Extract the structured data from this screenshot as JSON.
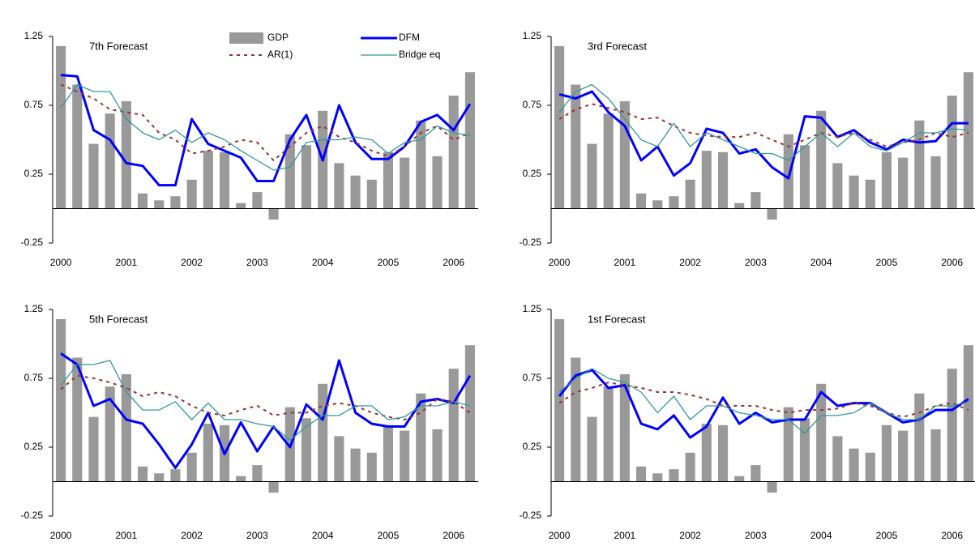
{
  "chart_data": [
    {
      "type": "bar",
      "title": "7th Forecast",
      "legend": "upper center",
      "categories": [
        "2000",
        null,
        null,
        null,
        "2001",
        null,
        null,
        null,
        "2002",
        null,
        null,
        null,
        "2003",
        null,
        null,
        null,
        "2004",
        null,
        null,
        null,
        "2005",
        null,
        null,
        null,
        "2006",
        null
      ],
      "ylim": [
        -0.25,
        1.25
      ],
      "yticks": [
        -0.25,
        0.25,
        0.75,
        1.25
      ],
      "series": [
        {
          "name": "GDP",
          "type": "bar",
          "color": "#999999",
          "values": [
            1.18,
            0.9,
            0.47,
            0.69,
            0.78,
            0.11,
            0.06,
            0.09,
            0.21,
            0.42,
            0.41,
            0.04,
            0.12,
            -0.08,
            0.54,
            0.46,
            0.71,
            0.33,
            0.24,
            0.21,
            0.41,
            0.37,
            0.64,
            0.38,
            0.82,
            0.99
          ]
        },
        {
          "name": "DFM",
          "type": "line",
          "color": "#0000ff",
          "width": 3,
          "values": [
            0.97,
            0.96,
            0.57,
            0.5,
            0.33,
            0.31,
            0.17,
            0.17,
            0.65,
            0.47,
            0.42,
            0.37,
            0.2,
            0.2,
            0.5,
            0.68,
            0.35,
            0.75,
            0.48,
            0.36,
            0.36,
            0.45,
            0.63,
            0.68,
            0.57,
            0.76
          ]
        },
        {
          "name": "AR(1)",
          "type": "line",
          "color": "#993333",
          "width": 2,
          "style": "dashed",
          "values": [
            0.9,
            0.85,
            0.8,
            0.72,
            0.7,
            0.68,
            0.55,
            0.5,
            0.4,
            0.42,
            0.45,
            0.5,
            0.48,
            0.35,
            0.45,
            0.55,
            0.6,
            0.52,
            0.48,
            0.42,
            0.38,
            0.45,
            0.55,
            0.6,
            0.5,
            0.55
          ]
        },
        {
          "name": "Bridge eq",
          "type": "line",
          "color": "#339999",
          "width": 1.3,
          "values": [
            0.73,
            0.9,
            0.85,
            0.85,
            0.65,
            0.55,
            0.5,
            0.57,
            0.48,
            0.55,
            0.5,
            0.42,
            0.35,
            0.28,
            0.3,
            0.48,
            0.5,
            0.5,
            0.52,
            0.5,
            0.4,
            0.48,
            0.5,
            0.6,
            0.55,
            0.53
          ]
        }
      ]
    },
    {
      "type": "bar",
      "title": "3rd Forecast",
      "categories": [
        "2000",
        null,
        null,
        null,
        "2001",
        null,
        null,
        null,
        "2002",
        null,
        null,
        null,
        "2003",
        null,
        null,
        null,
        "2004",
        null,
        null,
        null,
        "2005",
        null,
        null,
        null,
        "2006",
        null
      ],
      "ylim": [
        -0.25,
        1.25
      ],
      "yticks": [
        -0.25,
        0.25,
        0.75,
        1.25
      ],
      "series": [
        {
          "name": "GDP",
          "type": "bar",
          "color": "#999999",
          "values": [
            1.18,
            0.9,
            0.47,
            0.69,
            0.78,
            0.11,
            0.06,
            0.09,
            0.21,
            0.42,
            0.41,
            0.04,
            0.12,
            -0.08,
            0.54,
            0.46,
            0.71,
            0.33,
            0.24,
            0.21,
            0.41,
            0.37,
            0.64,
            0.38,
            0.82,
            0.99
          ]
        },
        {
          "name": "DFM",
          "type": "line",
          "color": "#0000ff",
          "width": 3,
          "values": [
            0.83,
            0.8,
            0.85,
            0.7,
            0.6,
            0.35,
            0.45,
            0.24,
            0.33,
            0.58,
            0.55,
            0.4,
            0.43,
            0.3,
            0.22,
            0.67,
            0.66,
            0.52,
            0.57,
            0.48,
            0.43,
            0.5,
            0.48,
            0.49,
            0.62,
            0.62
          ]
        },
        {
          "name": "AR(1)",
          "type": "line",
          "color": "#993333",
          "width": 2,
          "style": "dashed",
          "values": [
            0.65,
            0.72,
            0.76,
            0.73,
            0.7,
            0.65,
            0.66,
            0.6,
            0.55,
            0.53,
            0.52,
            0.52,
            0.55,
            0.5,
            0.45,
            0.5,
            0.55,
            0.52,
            0.55,
            0.5,
            0.45,
            0.48,
            0.5,
            0.55,
            0.52,
            0.55
          ]
        },
        {
          "name": "Bridge eq",
          "type": "line",
          "color": "#339999",
          "width": 1.3,
          "values": [
            0.7,
            0.85,
            0.9,
            0.8,
            0.65,
            0.5,
            0.45,
            0.62,
            0.45,
            0.55,
            0.5,
            0.45,
            0.4,
            0.4,
            0.35,
            0.45,
            0.55,
            0.45,
            0.55,
            0.45,
            0.42,
            0.48,
            0.55,
            0.55,
            0.58,
            0.57
          ]
        }
      ]
    },
    {
      "type": "bar",
      "title": "5th Forecast",
      "categories": [
        "2000",
        null,
        null,
        null,
        "2001",
        null,
        null,
        null,
        "2002",
        null,
        null,
        null,
        "2003",
        null,
        null,
        null,
        "2004",
        null,
        null,
        null,
        "2005",
        null,
        null,
        null,
        "2006",
        null
      ],
      "ylim": [
        -0.25,
        1.25
      ],
      "yticks": [
        -0.25,
        0.25,
        0.75,
        1.25
      ],
      "series": [
        {
          "name": "GDP",
          "type": "bar",
          "color": "#999999",
          "values": [
            1.18,
            0.9,
            0.47,
            0.69,
            0.78,
            0.11,
            0.06,
            0.09,
            0.21,
            0.42,
            0.41,
            0.04,
            0.12,
            -0.08,
            0.54,
            0.46,
            0.71,
            0.33,
            0.24,
            0.21,
            0.41,
            0.37,
            0.64,
            0.38,
            0.82,
            0.99
          ]
        },
        {
          "name": "DFM",
          "type": "line",
          "color": "#0000ff",
          "width": 3,
          "values": [
            0.93,
            0.85,
            0.55,
            0.6,
            0.45,
            0.42,
            0.27,
            0.1,
            0.27,
            0.5,
            0.2,
            0.43,
            0.22,
            0.4,
            0.25,
            0.56,
            0.45,
            0.88,
            0.5,
            0.42,
            0.4,
            0.4,
            0.58,
            0.6,
            0.57,
            0.77
          ]
        },
        {
          "name": "AR(1)",
          "type": "line",
          "color": "#993333",
          "width": 2,
          "style": "dashed",
          "values": [
            0.67,
            0.77,
            0.75,
            0.72,
            0.68,
            0.62,
            0.65,
            0.62,
            0.55,
            0.5,
            0.48,
            0.52,
            0.55,
            0.48,
            0.5,
            0.5,
            0.55,
            0.57,
            0.55,
            0.5,
            0.47,
            0.45,
            0.5,
            0.6,
            0.58,
            0.5
          ]
        },
        {
          "name": "Bridge eq",
          "type": "line",
          "color": "#339999",
          "width": 1.3,
          "values": [
            0.7,
            0.85,
            0.85,
            0.88,
            0.65,
            0.52,
            0.52,
            0.58,
            0.45,
            0.57,
            0.45,
            0.45,
            0.42,
            0.4,
            0.3,
            0.4,
            0.48,
            0.48,
            0.55,
            0.55,
            0.45,
            0.47,
            0.55,
            0.55,
            0.58,
            0.55
          ]
        }
      ]
    },
    {
      "type": "bar",
      "title": "1st Forecast",
      "categories": [
        "2000",
        null,
        null,
        null,
        "2001",
        null,
        null,
        null,
        "2002",
        null,
        null,
        null,
        "2003",
        null,
        null,
        null,
        "2004",
        null,
        null,
        null,
        "2005",
        null,
        null,
        null,
        "2006",
        null
      ],
      "ylim": [
        -0.25,
        1.25
      ],
      "yticks": [
        -0.25,
        0.25,
        0.75,
        1.25
      ],
      "series": [
        {
          "name": "GDP",
          "type": "bar",
          "color": "#999999",
          "values": [
            1.18,
            0.9,
            0.47,
            0.69,
            0.78,
            0.11,
            0.06,
            0.09,
            0.21,
            0.42,
            0.41,
            0.04,
            0.12,
            -0.08,
            0.54,
            0.46,
            0.71,
            0.33,
            0.24,
            0.21,
            0.41,
            0.37,
            0.64,
            0.38,
            0.82,
            0.99
          ]
        },
        {
          "name": "DFM",
          "type": "line",
          "color": "#0000ff",
          "width": 3,
          "values": [
            0.62,
            0.77,
            0.81,
            0.68,
            0.7,
            0.42,
            0.38,
            0.48,
            0.32,
            0.4,
            0.61,
            0.42,
            0.5,
            0.43,
            0.45,
            0.45,
            0.65,
            0.55,
            0.57,
            0.57,
            0.5,
            0.43,
            0.45,
            0.52,
            0.52,
            0.6
          ]
        },
        {
          "name": "AR(1)",
          "type": "line",
          "color": "#993333",
          "width": 2,
          "style": "dashed",
          "values": [
            0.57,
            0.65,
            0.68,
            0.72,
            0.7,
            0.68,
            0.65,
            0.65,
            0.63,
            0.6,
            0.55,
            0.55,
            0.55,
            0.52,
            0.5,
            0.52,
            0.52,
            0.53,
            0.57,
            0.55,
            0.5,
            0.47,
            0.5,
            0.55,
            0.57,
            0.52
          ]
        },
        {
          "name": "Bridge eq",
          "type": "line",
          "color": "#339999",
          "width": 1.3,
          "values": [
            0.65,
            0.75,
            0.82,
            0.75,
            0.72,
            0.65,
            0.5,
            0.62,
            0.45,
            0.55,
            0.55,
            0.5,
            0.48,
            0.45,
            0.45,
            0.35,
            0.48,
            0.48,
            0.5,
            0.57,
            0.5,
            0.45,
            0.45,
            0.55,
            0.55,
            0.58
          ]
        }
      ]
    }
  ]
}
